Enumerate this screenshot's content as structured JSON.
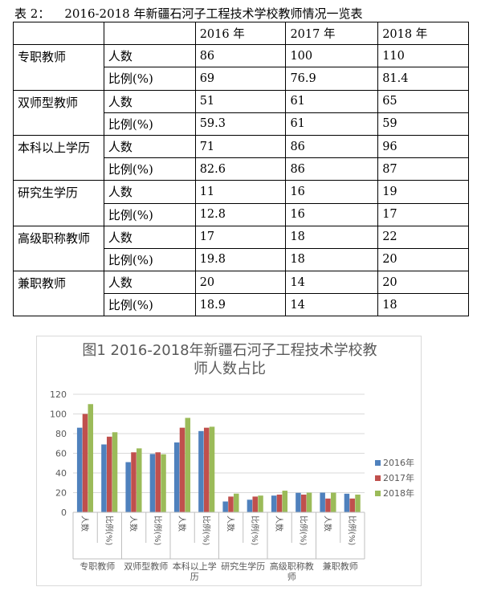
{
  "table": {
    "caption_label": "表 2：",
    "caption_text": "2016-2018 年新疆石河子工程技术学校教师情况一览表",
    "years": [
      "2016 年",
      "2017 年",
      "2018 年"
    ],
    "groups": [
      {
        "name": "专职教师",
        "rows": [
          {
            "label": "人数",
            "values": [
              "86",
              "100",
              "110"
            ]
          },
          {
            "label": "比例(%)",
            "values": [
              "69",
              "76.9",
              "81.4"
            ]
          }
        ]
      },
      {
        "name": "双师型教师",
        "rows": [
          {
            "label": "人数",
            "values": [
              "51",
              "61",
              "65"
            ]
          },
          {
            "label": "比例(%)",
            "values": [
              "59.3",
              "61",
              "59"
            ]
          }
        ]
      },
      {
        "name": "本科以上学历",
        "rows": [
          {
            "label": "人数",
            "values": [
              "71",
              "86",
              "96"
            ]
          },
          {
            "label": "比例(%)",
            "values": [
              "82.6",
              "86",
              "87"
            ]
          }
        ]
      },
      {
        "name": "研究生学历",
        "rows": [
          {
            "label": "人数",
            "values": [
              "11",
              "16",
              "19"
            ]
          },
          {
            "label": "比例(%)",
            "values": [
              "12.8",
              "16",
              "17"
            ]
          }
        ]
      },
      {
        "name": "高级职称教师",
        "rows": [
          {
            "label": "人数",
            "values": [
              "17",
              "18",
              "22"
            ]
          },
          {
            "label": "比例(%)",
            "values": [
              "19.8",
              "18",
              "20"
            ]
          }
        ]
      },
      {
        "name": "兼职教师",
        "rows": [
          {
            "label": "人数",
            "values": [
              "20",
              "14",
              "20"
            ]
          },
          {
            "label": "比例(%)",
            "values": [
              "18.9",
              "14",
              "18"
            ]
          }
        ]
      }
    ]
  },
  "chart_data": {
    "type": "bar",
    "title_lines": [
      "图1 2016-2018年新疆石河子工程技术学校教",
      "师人数占比"
    ],
    "groups": [
      "专职教师",
      "双师型教师",
      "本科以上学历",
      "研究生学历",
      "高级职称教师",
      "兼职教师"
    ],
    "group_label_lines": [
      [
        "专职教师"
      ],
      [
        "双师型教师"
      ],
      [
        "本科以上学",
        "历"
      ],
      [
        "研究生学历"
      ],
      [
        "高级职称教",
        "师"
      ],
      [
        "兼职教师"
      ]
    ],
    "subcategories": [
      "人数",
      "比例(%)"
    ],
    "series": [
      {
        "name": "2016年",
        "color": "#4f81bd",
        "values": [
          86,
          69,
          51,
          59.3,
          71,
          82.6,
          11,
          12.8,
          17,
          19.8,
          20,
          18.9
        ]
      },
      {
        "name": "2017年",
        "color": "#c0504d",
        "values": [
          100,
          76.9,
          61,
          61,
          86,
          86,
          16,
          16,
          18,
          18,
          14,
          14
        ]
      },
      {
        "name": "2018年",
        "color": "#9bbb59",
        "values": [
          110,
          81.4,
          65,
          59,
          96,
          87,
          19,
          17,
          22,
          20,
          20,
          18
        ]
      }
    ],
    "yticks": [
      0,
      20,
      40,
      60,
      80,
      100,
      120
    ],
    "ylim": [
      0,
      120
    ],
    "legend_position": "right"
  }
}
